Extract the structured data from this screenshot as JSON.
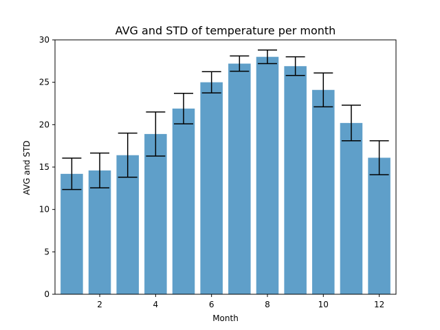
{
  "chart_data": {
    "type": "bar",
    "title": "AVG and STD of temperature per month",
    "xlabel": "Month",
    "ylabel": "AVG and STD",
    "x": [
      1,
      2,
      3,
      4,
      5,
      6,
      7,
      8,
      9,
      10,
      11,
      12
    ],
    "values": [
      14.2,
      14.6,
      16.4,
      18.9,
      21.9,
      25.0,
      27.2,
      28.0,
      26.9,
      24.1,
      20.2,
      16.1
    ],
    "errors": [
      1.85,
      2.05,
      2.6,
      2.6,
      1.8,
      1.25,
      0.9,
      0.8,
      1.1,
      2.0,
      2.1,
      2.0
    ],
    "xlim": [
      0.4,
      12.6
    ],
    "ylim": [
      0,
      30
    ],
    "xticks": [
      2,
      4,
      6,
      8,
      10,
      12
    ],
    "yticks": [
      0,
      5,
      10,
      15,
      20,
      25,
      30
    ],
    "bar_color": "#5f9fc9",
    "error_color": "#000000",
    "grid": false,
    "legend": "none"
  }
}
